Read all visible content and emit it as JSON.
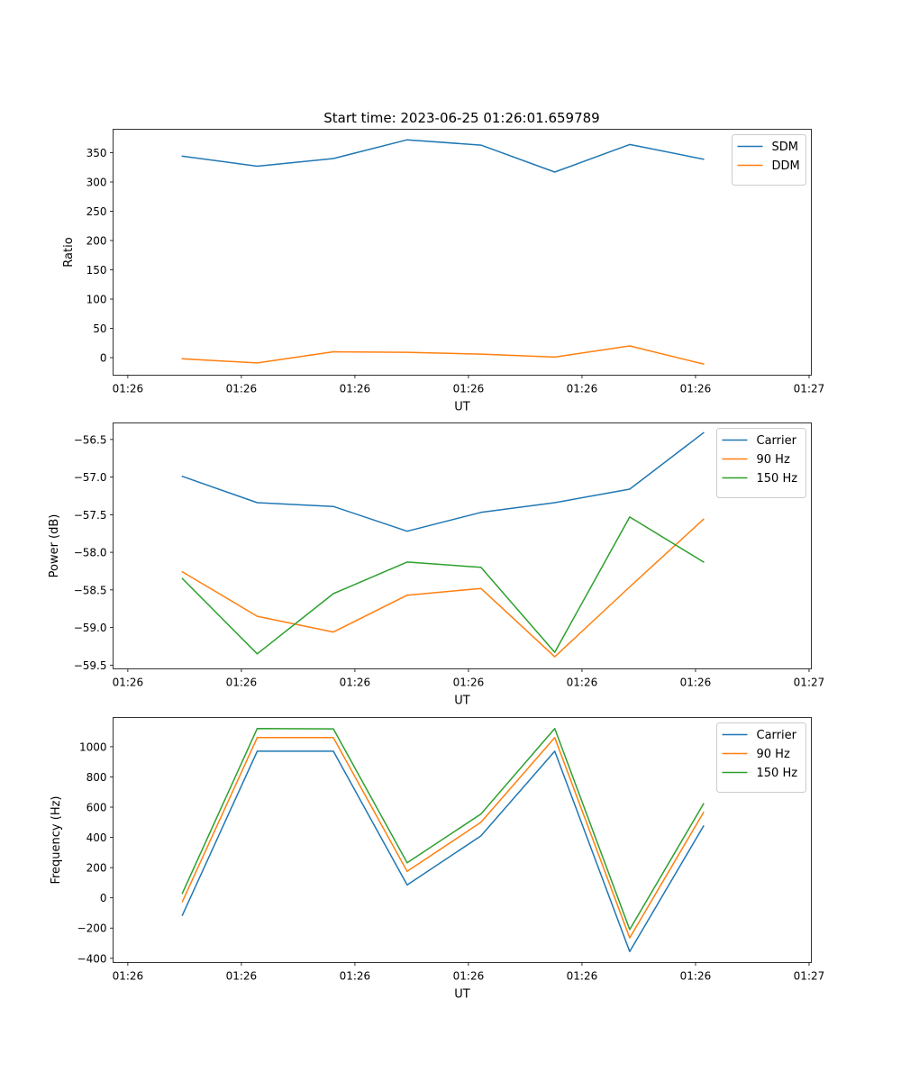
{
  "figure": {
    "title": "Start time: 2023-06-25 01:26:01.659789"
  },
  "colors": {
    "series_1": "#1f77b4",
    "series_2": "#ff7f0e",
    "series_3": "#2ca02c",
    "axes": "#000000",
    "background": "#ffffff",
    "legend_border": "#cccccc"
  },
  "chart_data": [
    {
      "type": "line",
      "title": "Start time: 2023-06-25 01:26:01.659789",
      "xlabel": "UT",
      "ylabel": "Ratio",
      "x_tick_labels": [
        "01:26",
        "01:26",
        "01:26",
        "01:26",
        "01:26",
        "01:26",
        "01:27"
      ],
      "x_tick_positions": [
        0,
        1,
        2,
        3,
        4,
        5,
        6
      ],
      "xlim": [
        -0.13,
        6.02
      ],
      "y_ticks": [
        0,
        50,
        100,
        150,
        200,
        250,
        300,
        350
      ],
      "ylim": [
        -30,
        390
      ],
      "legend": "upper right",
      "grid": false,
      "series": [
        {
          "name": "SDM",
          "color": "#1f77b4",
          "x": [
            0.48,
            1.14,
            1.81,
            2.46,
            3.11,
            3.76,
            4.42,
            5.07
          ],
          "values": [
            344,
            327,
            340,
            372,
            363,
            317,
            364,
            339
          ]
        },
        {
          "name": "DDM",
          "color": "#ff7f0e",
          "x": [
            0.48,
            1.14,
            1.81,
            2.46,
            3.11,
            3.76,
            4.42,
            5.07
          ],
          "values": [
            -2,
            -9,
            10,
            9,
            6,
            1,
            20,
            -11
          ]
        }
      ]
    },
    {
      "type": "line",
      "xlabel": "UT",
      "ylabel": "Power (dB)",
      "x_tick_labels": [
        "01:26",
        "01:26",
        "01:26",
        "01:26",
        "01:26",
        "01:26",
        "01:27"
      ],
      "x_tick_positions": [
        0,
        1,
        2,
        3,
        4,
        5,
        6
      ],
      "xlim": [
        -0.13,
        6.02
      ],
      "y_ticks": [
        -59.5,
        -59.0,
        -58.5,
        -58.0,
        -57.5,
        -57.0,
        -56.5
      ],
      "y_tick_labels": [
        "−59.5",
        "−59.0",
        "−58.5",
        "−58.0",
        "−57.5",
        "−57.0",
        "−56.5"
      ],
      "ylim": [
        -59.55,
        -56.28
      ],
      "legend": "upper right",
      "grid": false,
      "series": [
        {
          "name": "Carrier",
          "color": "#1f77b4",
          "x": [
            0.48,
            1.14,
            1.81,
            2.46,
            3.11,
            3.76,
            4.42,
            5.07
          ],
          "values": [
            -56.99,
            -57.34,
            -57.39,
            -57.72,
            -57.47,
            -57.34,
            -57.16,
            -56.41
          ]
        },
        {
          "name": "90 Hz",
          "color": "#ff7f0e",
          "x": [
            0.48,
            1.14,
            1.81,
            2.46,
            3.11,
            3.76,
            4.42,
            5.07
          ],
          "values": [
            -58.26,
            -58.85,
            -59.06,
            -58.57,
            -58.48,
            -59.39,
            -58.46,
            -57.56
          ]
        },
        {
          "name": "150 Hz",
          "color": "#2ca02c",
          "x": [
            0.48,
            1.14,
            1.81,
            2.46,
            3.11,
            3.76,
            4.42,
            5.07
          ],
          "values": [
            -58.35,
            -59.35,
            -58.55,
            -58.13,
            -58.2,
            -59.33,
            -57.53,
            -58.13
          ]
        }
      ]
    },
    {
      "type": "line",
      "xlabel": "UT",
      "ylabel": "Frequency (Hz)",
      "x_tick_labels": [
        "01:26",
        "01:26",
        "01:26",
        "01:26",
        "01:26",
        "01:26",
        "01:27"
      ],
      "x_tick_positions": [
        0,
        1,
        2,
        3,
        4,
        5,
        6
      ],
      "xlim": [
        -0.13,
        6.02
      ],
      "y_ticks": [
        -400,
        -200,
        0,
        200,
        400,
        600,
        800,
        1000
      ],
      "y_tick_labels": [
        "−400",
        "−200",
        "0",
        "200",
        "400",
        "600",
        "800",
        "1000"
      ],
      "ylim": [
        -428,
        1193
      ],
      "legend": "upper right",
      "grid": false,
      "series": [
        {
          "name": "Carrier",
          "color": "#1f77b4",
          "x": [
            0.48,
            1.14,
            1.81,
            2.46,
            3.11,
            3.76,
            4.42,
            5.07
          ],
          "values": [
            -115,
            970,
            970,
            85,
            410,
            970,
            -355,
            475
          ]
        },
        {
          "name": "90 Hz",
          "color": "#ff7f0e",
          "x": [
            0.48,
            1.14,
            1.81,
            2.46,
            3.11,
            3.76,
            4.42,
            5.07
          ],
          "values": [
            -25,
            1060,
            1060,
            175,
            500,
            1060,
            -265,
            565
          ]
        },
        {
          "name": "150 Hz",
          "color": "#2ca02c",
          "x": [
            0.48,
            1.14,
            1.81,
            2.46,
            3.11,
            3.76,
            4.42,
            5.07
          ],
          "values": [
            30,
            1120,
            1118,
            232,
            555,
            1120,
            -210,
            622
          ]
        }
      ]
    }
  ]
}
